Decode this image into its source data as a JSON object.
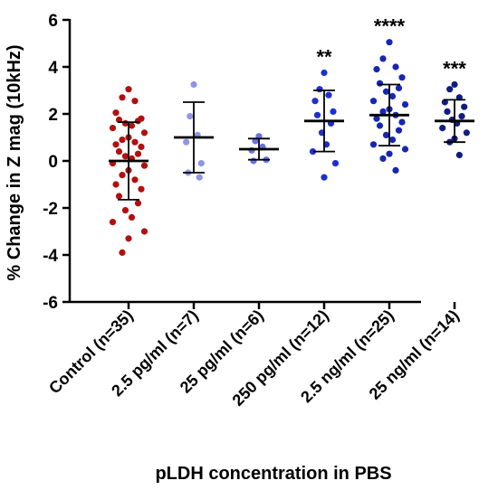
{
  "chart_data": {
    "type": "scatter",
    "ylabel": "% Change in Z mag (10kHz)",
    "xlabel": "pLDH concentration in PBS",
    "ylim": [
      -6,
      6
    ],
    "yticks": [
      6,
      4,
      2,
      0,
      -2,
      -4,
      -6
    ],
    "grid": false,
    "groups": [
      {
        "label": "Control (n=35)",
        "color": "#b30f0f",
        "mean": 0.0,
        "sd": 1.65,
        "significance": "",
        "values": [
          3.05,
          2.7,
          2.55,
          2.05,
          1.8,
          1.75,
          1.7,
          1.6,
          1.5,
          1.4,
          1.2,
          1.0,
          0.9,
          0.8,
          0.7,
          0.6,
          0.4,
          0.3,
          0.2,
          0.1,
          -0.1,
          -0.2,
          -0.4,
          -0.6,
          -0.8,
          -1.0,
          -1.2,
          -1.5,
          -1.8,
          -2.1,
          -2.4,
          -2.6,
          -3.0,
          -3.3,
          -3.9
        ]
      },
      {
        "label": "2.5 pg/ml (n=7)",
        "color": "#8f95e6",
        "mean": 1.0,
        "sd": 1.5,
        "significance": "",
        "values": [
          3.25,
          1.9,
          1.1,
          0.8,
          -0.1,
          -0.5,
          -0.7
        ]
      },
      {
        "label": "25 pg/ml (n=6)",
        "color": "#6873e0",
        "mean": 0.5,
        "sd": 0.45,
        "significance": "",
        "values": [
          1.05,
          0.85,
          0.6,
          0.45,
          0.05,
          0.0
        ]
      },
      {
        "label": "250 pg/ml (n=12)",
        "color": "#1d2fd1",
        "mean": 1.7,
        "sd": 1.3,
        "significance": "**",
        "values": [
          3.75,
          3.05,
          2.8,
          2.55,
          2.1,
          1.95,
          1.6,
          1.2,
          0.7,
          0.4,
          -0.1,
          -0.7
        ]
      },
      {
        "label": "2.5 ng/ml (n=25)",
        "color": "#1626b2",
        "mean": 1.95,
        "sd": 1.3,
        "significance": "****",
        "values": [
          5.05,
          4.35,
          4.0,
          3.9,
          3.55,
          3.3,
          3.1,
          2.95,
          2.75,
          2.55,
          2.4,
          2.2,
          2.1,
          1.95,
          1.8,
          1.65,
          1.5,
          1.3,
          1.1,
          0.9,
          0.7,
          0.5,
          0.3,
          0.1,
          -0.4
        ]
      },
      {
        "label": "25 ng/ml (n=14)",
        "color": "#0f1c80",
        "mean": 1.7,
        "sd": 0.9,
        "significance": "***",
        "values": [
          3.25,
          3.05,
          2.7,
          2.5,
          2.3,
          2.1,
          1.9,
          1.75,
          1.6,
          1.4,
          1.2,
          0.95,
          0.8,
          0.25
        ]
      }
    ]
  }
}
